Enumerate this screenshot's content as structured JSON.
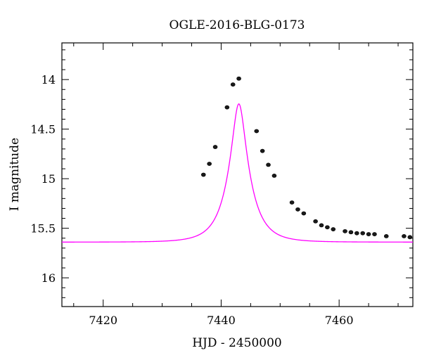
{
  "chart_data": {
    "type": "scatter",
    "title": "OGLE-2016-BLG-0173",
    "xlabel": "HJD - 2450000",
    "ylabel": "I magnitude",
    "xlim": [
      7413,
      7472.5
    ],
    "ylim": [
      16.29,
      13.63
    ],
    "y_inverted": true,
    "grid": false,
    "x_ticks": [
      "7420",
      "7440",
      "7460"
    ],
    "x_tick_values": [
      7420,
      7440,
      7460
    ],
    "y_ticks": [
      "14",
      "14.5",
      "15",
      "15.5",
      "16"
    ],
    "y_tick_values": [
      14,
      14.5,
      15,
      15.5,
      16
    ],
    "colors": {
      "model": "#ff00ff",
      "points": "#000000"
    },
    "series": [
      {
        "type": "scatter",
        "x": [
          7437,
          7438,
          7439,
          7441,
          7442,
          7443,
          7446,
          7447,
          7448,
          7449,
          7452,
          7453,
          7454,
          7456,
          7457,
          7458,
          7459,
          7461,
          7462,
          7463,
          7464,
          7465,
          7466,
          7468,
          7471,
          7472
        ],
        "y": [
          14.96,
          14.85,
          14.68,
          14.28,
          14.05,
          13.99,
          14.52,
          14.72,
          14.86,
          14.97,
          15.24,
          15.31,
          15.35,
          15.43,
          15.47,
          15.49,
          15.51,
          15.53,
          15.54,
          15.55,
          15.55,
          15.56,
          15.56,
          15.58,
          15.58,
          15.59
        ]
      },
      {
        "type": "line",
        "model": {
          "t0": 7443.0,
          "tE": 3.6,
          "u0": 0.285,
          "m_base": 15.64
        }
      }
    ]
  }
}
